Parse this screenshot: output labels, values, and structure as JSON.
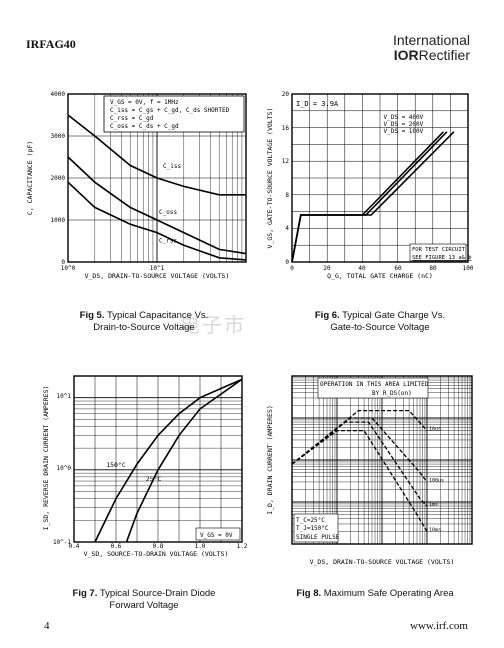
{
  "header": {
    "part_number": "IRFAG40",
    "brand_line1": "International",
    "brand_logo": "IOR",
    "brand_line2": "Rectifier"
  },
  "figures": [
    {
      "label": "Fig 5.",
      "caption_line1": "Typical Capacitance Vs.",
      "caption_line2": "Drain-to-Source Voltage"
    },
    {
      "label": "Fig 6.",
      "caption_line1": "Typical Gate Charge Vs.",
      "caption_line2": "Gate-to-Source Voltage"
    },
    {
      "label": "Fig 7.",
      "caption_line1": "Typical Source-Drain Diode",
      "caption_line2": "Forward Voltage"
    },
    {
      "label": "Fig 8.",
      "caption_line1": "Maximum Safe Operating Area",
      "caption_line2": ""
    }
  ],
  "watermark": "电子市",
  "footer": {
    "page": "4",
    "url": "www.irf.com"
  },
  "chart_data": [
    {
      "type": "line",
      "xlabel": "V_DS, DRAIN-TO-SOURCE VOLTAGE (VOLTS)",
      "ylabel": "C, CAPACITANCE (pF)",
      "x_scale": "log",
      "xlim": [
        1,
        100
      ],
      "ylim": [
        0,
        4000
      ],
      "yticks": [
        "0",
        "1000",
        "2000",
        "3000",
        "4000"
      ],
      "xticks": [
        "10^0",
        "10^1"
      ],
      "legend": [
        "V_GS = 0V,  f = 1MHz",
        "C_iss = C_gs + C_gd, C_ds SHORTED",
        "C_rss = C_gd",
        "C_oss = C_ds + C_gd"
      ],
      "series": [
        {
          "name": "C_iss",
          "x": [
            1,
            2,
            5,
            10,
            20,
            50,
            100
          ],
          "y": [
            3500,
            3000,
            2300,
            2000,
            1800,
            1600,
            1600
          ]
        },
        {
          "name": "C_oss",
          "x": [
            1,
            2,
            5,
            10,
            20,
            50,
            100
          ],
          "y": [
            2500,
            1900,
            1300,
            1000,
            700,
            300,
            200
          ]
        },
        {
          "name": "C_rss",
          "x": [
            1,
            2,
            5,
            10,
            20,
            50,
            100
          ],
          "y": [
            1900,
            1300,
            900,
            700,
            400,
            100,
            50
          ]
        }
      ]
    },
    {
      "type": "line",
      "xlabel": "Q_G, TOTAL GATE CHARGE (nC)",
      "ylabel": "V_GS, GATE-TO-SOURCE VOLTAGE (VOLTS)",
      "xlim": [
        0,
        100
      ],
      "ylim": [
        0,
        20
      ],
      "xticks": [
        "0",
        "20",
        "40",
        "60",
        "80",
        "100"
      ],
      "yticks": [
        "0",
        "4",
        "8",
        "12",
        "16",
        "20"
      ],
      "annotations": [
        "I_D = 3.9A",
        "FOR TEST CIRCUIT",
        "SEE FIGURE 13 a& b"
      ],
      "series": [
        {
          "name": "V_DS = 400V",
          "x": [
            0,
            5,
            45,
            92
          ],
          "y": [
            0,
            5.6,
            5.6,
            15.5
          ]
        },
        {
          "name": "V_DS = 200V",
          "x": [
            0,
            5,
            42,
            88
          ],
          "y": [
            0,
            5.6,
            5.6,
            15.5
          ]
        },
        {
          "name": "V_DS = 100V",
          "x": [
            0,
            5,
            40,
            86
          ],
          "y": [
            0,
            5.6,
            5.6,
            15.5
          ]
        }
      ]
    },
    {
      "type": "line",
      "xlabel": "V_SD, SOURCE-TO-DRAIN VOLTAGE (VOLTS)",
      "ylabel": "I_SD, REVERSE DRAIN CURRENT (AMPERES)",
      "y_scale": "log",
      "xlim": [
        0.4,
        1.2
      ],
      "ylim": [
        0.1,
        20
      ],
      "xticks": [
        "0.4",
        "0.6",
        "0.8",
        "1.0",
        "1.2"
      ],
      "yticks": [
        "10^-1",
        "10^0",
        "10^1"
      ],
      "annotations": [
        "V_GS = 0V"
      ],
      "series": [
        {
          "name": "150°C",
          "x": [
            0.5,
            0.6,
            0.7,
            0.8,
            0.9,
            1.0,
            1.2
          ],
          "y": [
            0.1,
            0.4,
            1.2,
            3,
            6,
            10,
            18
          ]
        },
        {
          "name": "25°C",
          "x": [
            0.65,
            0.7,
            0.8,
            0.9,
            1.0,
            1.2
          ],
          "y": [
            0.1,
            0.25,
            1.0,
            3,
            7,
            18
          ]
        }
      ]
    },
    {
      "type": "line",
      "xlabel": "V_DS, DRAIN-TO-SOURCE VOLTAGE (VOLTS)",
      "ylabel": "I_D, DRAIN CURRENT (AMPERES)",
      "x_scale": "log",
      "y_scale": "log",
      "xlim": [
        1,
        10000
      ],
      "ylim": [
        0.01,
        100
      ],
      "annotations": [
        "OPERATION IN THIS AREA LIMITED",
        "BY R_DS(on)",
        "T_C=25°C",
        "T_J=150°C",
        "SINGLE PULSE"
      ],
      "series": [
        {
          "name": "10us",
          "x": [
            1,
            30,
            400,
            1000
          ],
          "y": [
            0.8,
            15,
            15,
            5
          ]
        },
        {
          "name": "100us",
          "x": [
            1,
            20,
            60,
            700,
            1000
          ],
          "y": [
            0.8,
            10,
            10,
            0.5,
            0.3
          ]
        },
        {
          "name": "1ms",
          "x": [
            1,
            15,
            50,
            700,
            1000
          ],
          "y": [
            0.8,
            8,
            8,
            0.12,
            0.08
          ]
        },
        {
          "name": "10ms",
          "x": [
            1,
            10,
            40,
            600,
            1000
          ],
          "y": [
            0.8,
            5,
            5,
            0.05,
            0.02
          ]
        }
      ]
    }
  ]
}
